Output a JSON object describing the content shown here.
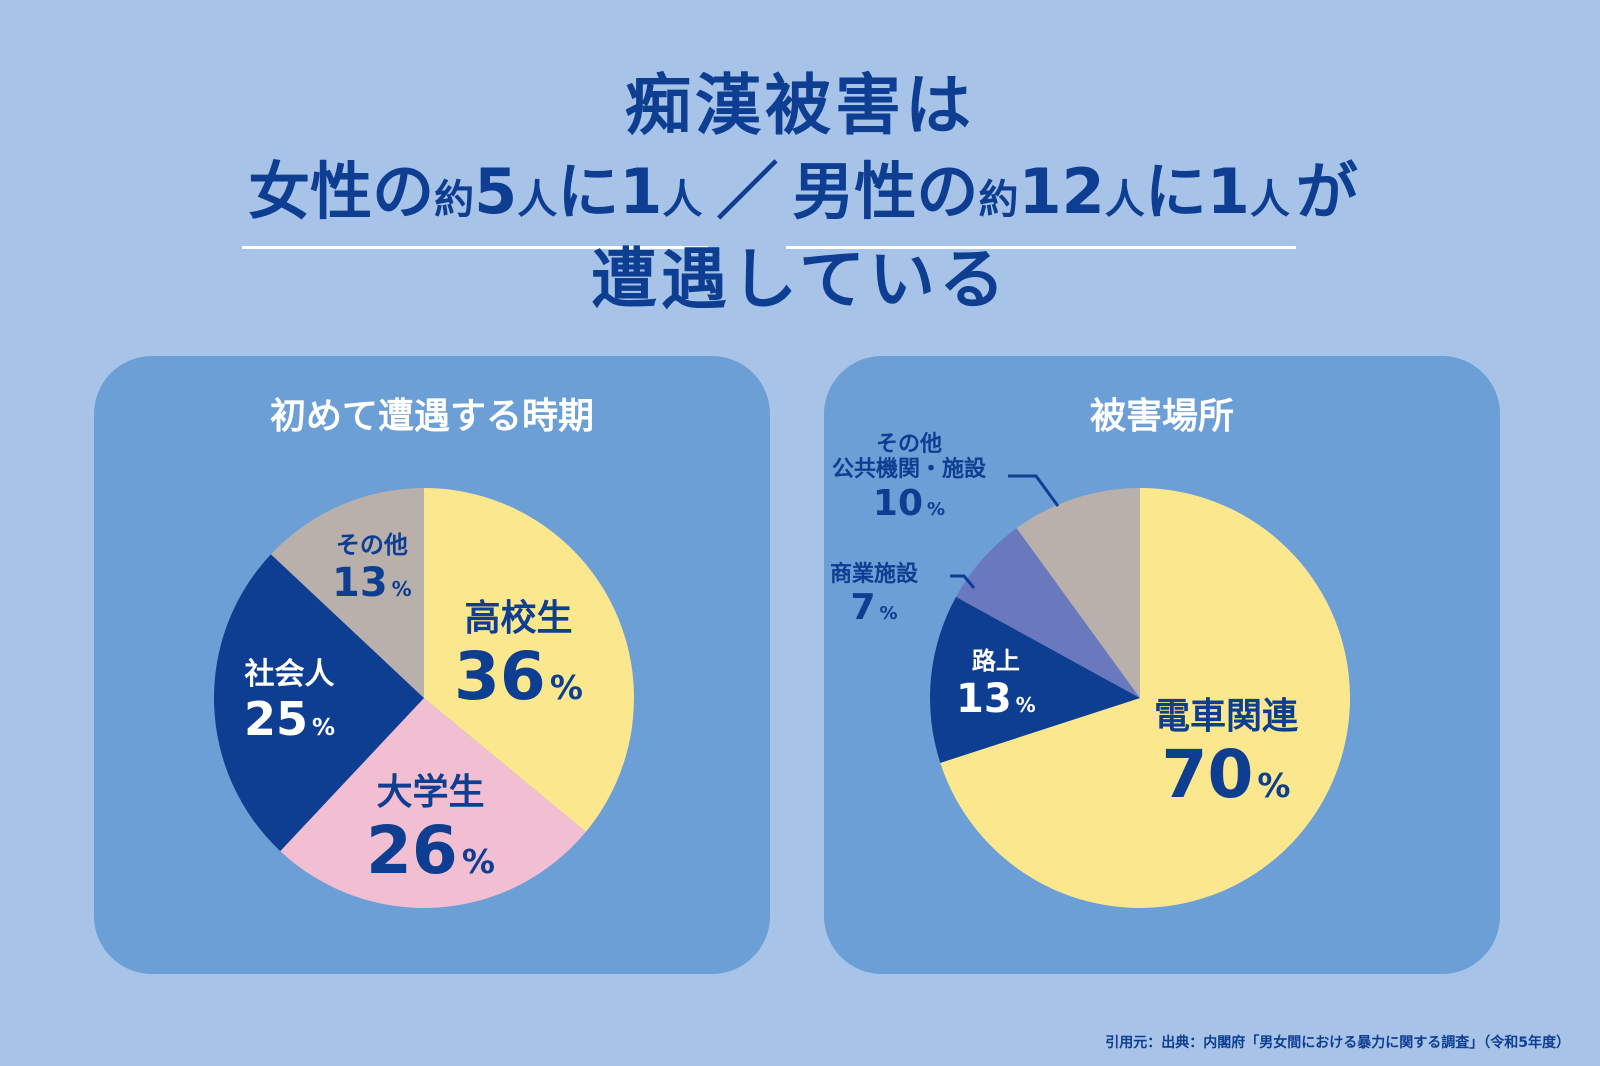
{
  "headline": {
    "line1": "痴漢被害は",
    "female_prefix": "女性の",
    "female_about": "約",
    "female_num": "5",
    "female_unit": "人",
    "female_ni": "に",
    "female_one": "1",
    "female_unit2": "人",
    "slash": "／",
    "male_prefix": "男性の",
    "male_about": "約",
    "male_num": "12",
    "male_unit": "人",
    "male_ni": "に",
    "male_one": "1",
    "male_unit2": "人",
    "ga": "が",
    "line3": "遭遇している"
  },
  "colors": {
    "background": "#a7c4e8",
    "panel": "#6b9fd5",
    "navy": "#0e3e92",
    "yellow": "#fbe78e",
    "pink": "#f2bfd2",
    "grey": "#b9b0ac",
    "purple": "#6a78be"
  },
  "chart_data": [
    {
      "type": "pie",
      "title": "初めて遭遇する時期",
      "slices": [
        {
          "label": "高校生",
          "value": 36,
          "color": "#fbe78e"
        },
        {
          "label": "大学生",
          "value": 26,
          "color": "#f2bfd2"
        },
        {
          "label": "社会人",
          "value": 25,
          "color": "#0e3e92"
        },
        {
          "label": "その他",
          "value": 13,
          "color": "#b9b0ac"
        }
      ],
      "unit": "%"
    },
    {
      "type": "pie",
      "title": "被害場所",
      "slices": [
        {
          "label": "電車関連",
          "value": 70,
          "color": "#fbe78e"
        },
        {
          "label": "路上",
          "value": 13,
          "color": "#0e3e92"
        },
        {
          "label": "商業施設",
          "value": 7,
          "color": "#6a78be"
        },
        {
          "label": "その他公共機関・施設",
          "value": 10,
          "color": "#b9b0ac"
        }
      ],
      "unit": "%"
    }
  ],
  "labels": {
    "left": {
      "koukousei": {
        "name": "高校生",
        "value": "36"
      },
      "daigakusei": {
        "name": "大学生",
        "value": "26"
      },
      "shakaijin": {
        "name": "社会人",
        "value": "25"
      },
      "sonota": {
        "name": "その他",
        "value": "13"
      }
    },
    "right": {
      "densha": {
        "name": "電車関連",
        "value": "70"
      },
      "rojo": {
        "name": "路上",
        "value": "13"
      },
      "shogyo": {
        "name": "商業施設",
        "value": "7"
      },
      "sonota_line1": "その他",
      "sonota_line2": "公共機関・施設",
      "sonota_value": "10"
    },
    "percent": "%"
  },
  "footer": "引用元：出典：内閣府「男女間における暴力に関する調査」（令和5年度）"
}
